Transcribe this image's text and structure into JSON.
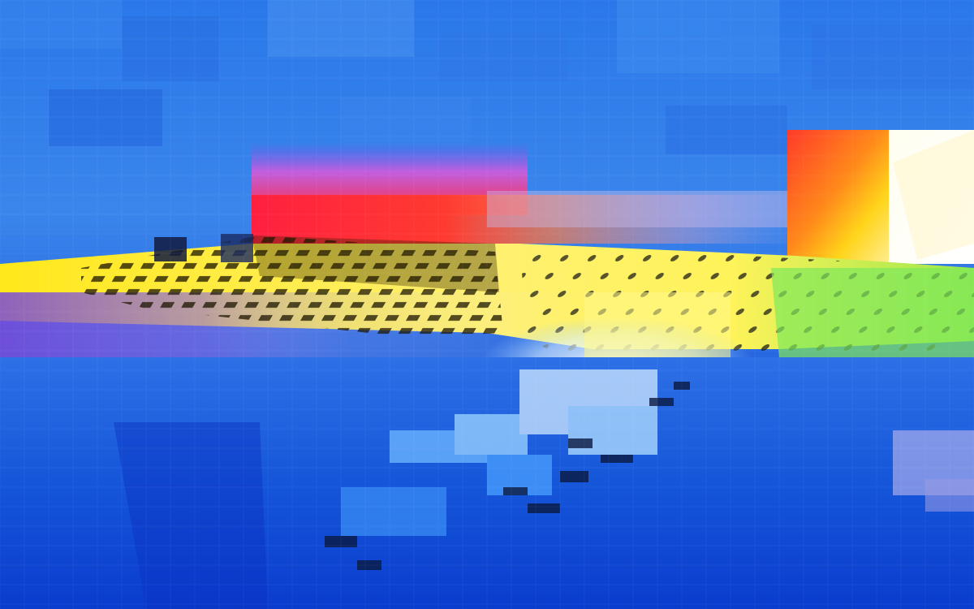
{
  "image": {
    "kind": "glitch-art photograph",
    "palette": {
      "sky": "#2f7be8",
      "deep_blue": "#0a3fd0",
      "red_band": "#ff2a3a",
      "magenta": "#c85ad8",
      "yellow": "#ffe81a",
      "orange": "#ffb000",
      "green": "#7fe85a",
      "white_glow": "#ffffff",
      "dark_rows": "#1a1400",
      "water_light": "#9fd6ff"
    }
  }
}
